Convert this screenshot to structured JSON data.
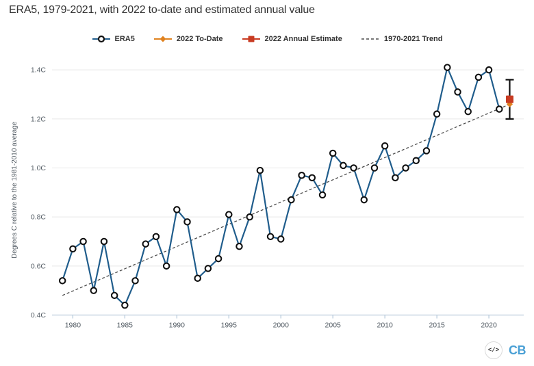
{
  "title": "ERA5, 1979-2021, with 2022 to-date and estimated annual value",
  "legend": [
    {
      "label": "ERA5",
      "line_color": "#205d8c",
      "marker_color": "#101010"
    },
    {
      "label": "2022 To-Date",
      "color": "#e0821f"
    },
    {
      "label": "2022 Annual Estimate",
      "color": "#c83b22"
    },
    {
      "label": "1970-2021 Trend",
      "color": "#4d4d4d"
    }
  ],
  "footer": {
    "embed_icon": "</>",
    "logo_text": "CB",
    "logo_color": "#4aa0d5"
  },
  "chart_data": {
    "type": "line",
    "title": "ERA5, 1979-2021, with 2022 to-date and estimated annual value",
    "xlabel": "",
    "ylabel": "Degrees C relative to the 1981-2010 average",
    "xlim": [
      1978,
      2023.35
    ],
    "ylim": [
      0.4,
      1.42
    ],
    "yticks": [
      0.4,
      0.6,
      0.8,
      1.0,
      1.2,
      1.4
    ],
    "ytick_labels": [
      "0.4C",
      "0.6C",
      "0.8C",
      "1.0C",
      "1.2C",
      "1.4C"
    ],
    "xticks": [
      1980,
      1985,
      1990,
      1995,
      2000,
      2005,
      2010,
      2015,
      2020
    ],
    "xtick_labels": [
      "1980",
      "1985",
      "1990",
      "1995",
      "2000",
      "2005",
      "2010",
      "2015",
      "2020"
    ],
    "grid": "horizontal",
    "legend_position": "top",
    "colors": {
      "grid": "#e8e8e8",
      "axis": "#b9cbdc",
      "errorbar": "#111111"
    },
    "series": [
      {
        "id": "era5",
        "name": "ERA5",
        "type": "line-open-circles",
        "color": "#205d8c",
        "marker_color": "#101010",
        "x": [
          1979,
          1980,
          1981,
          1982,
          1983,
          1984,
          1985,
          1986,
          1987,
          1988,
          1989,
          1990,
          1991,
          1992,
          1993,
          1994,
          1995,
          1996,
          1997,
          1998,
          1999,
          2000,
          2001,
          2002,
          2003,
          2004,
          2005,
          2006,
          2007,
          2008,
          2009,
          2010,
          2011,
          2012,
          2013,
          2014,
          2015,
          2016,
          2017,
          2018,
          2019,
          2020,
          2021
        ],
        "values": [
          0.54,
          0.67,
          0.7,
          0.5,
          0.7,
          0.48,
          0.44,
          0.54,
          0.69,
          0.72,
          0.6,
          0.83,
          0.78,
          0.55,
          0.59,
          0.63,
          0.81,
          0.68,
          0.8,
          0.99,
          0.72,
          0.71,
          0.87,
          0.97,
          0.96,
          0.89,
          1.06,
          1.01,
          1.0,
          0.87,
          1.0,
          1.09,
          0.96,
          1.0,
          1.03,
          1.07,
          1.22,
          1.41,
          1.31,
          1.23,
          1.37,
          1.4,
          1.24
        ]
      },
      {
        "id": "todate",
        "name": "2022 To-Date",
        "type": "diamond",
        "color": "#e0821f",
        "x": [
          2022
        ],
        "values": [
          1.26
        ]
      },
      {
        "id": "estimate",
        "name": "2022 Annual Estimate",
        "type": "square-with-errorbar",
        "color": "#c83b22",
        "x": [
          2022
        ],
        "values": [
          1.28
        ],
        "range": [
          1.2,
          1.36
        ]
      },
      {
        "id": "trend",
        "name": "1970-2021 Trend",
        "type": "dashed-line",
        "color": "#4d4d4d",
        "x": [
          1979,
          2022
        ],
        "values": [
          0.48,
          1.26
        ]
      }
    ]
  }
}
